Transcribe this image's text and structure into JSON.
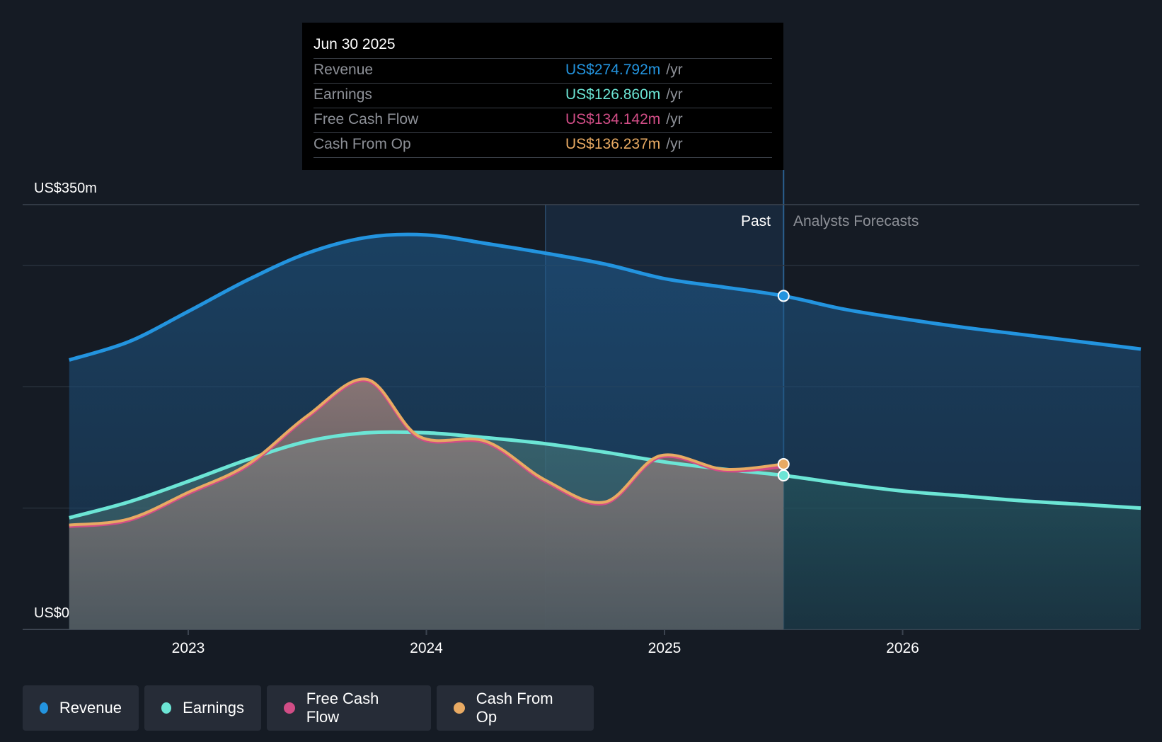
{
  "chart_data": {
    "type": "line",
    "ylim": [
      0,
      350
    ],
    "y_axis": {
      "top_label": "US$350m",
      "bottom_label": "US$0"
    },
    "x_ticks": [
      2023,
      2024,
      2025,
      2026
    ],
    "past_label": "Past",
    "forecast_label": "Analysts Forecasts",
    "colors": {
      "Revenue": "#2394df",
      "Earnings": "#6ce5d5",
      "Free Cash Flow": "#d14d86",
      "Cash From Op": "#e8aa63"
    },
    "series": [
      {
        "name": "Revenue",
        "x": [
          2022.5,
          2022.75,
          2023.0,
          2023.25,
          2023.5,
          2023.75,
          2024.0,
          2024.25,
          2024.5,
          2024.75,
          2025.0,
          2025.25,
          2025.5,
          2025.75,
          2026.0,
          2026.25,
          2026.5,
          2026.75,
          2027.0
        ],
        "values": [
          222,
          237,
          262,
          288,
          310,
          323,
          325,
          318,
          310,
          301,
          289,
          282,
          274.792,
          264,
          256,
          249,
          243,
          237,
          231
        ]
      },
      {
        "name": "Earnings",
        "x": [
          2022.5,
          2022.75,
          2023.0,
          2023.25,
          2023.5,
          2023.75,
          2024.0,
          2024.25,
          2024.5,
          2024.75,
          2025.0,
          2025.25,
          2025.5,
          2025.75,
          2026.0,
          2026.25,
          2026.5,
          2026.75,
          2027.0
        ],
        "values": [
          92,
          105,
          122,
          140,
          155,
          162,
          162,
          158,
          153,
          146,
          138,
          132,
          126.86,
          120,
          114,
          110,
          106,
          103,
          100
        ]
      },
      {
        "name": "Free Cash Flow",
        "x": [
          2022.5,
          2022.75,
          2023.0,
          2023.25,
          2023.5,
          2023.75,
          2023.97,
          2024.25,
          2024.5,
          2024.75,
          2024.98,
          2025.25,
          2025.5
        ],
        "values": [
          85,
          90,
          112,
          135,
          175,
          205,
          158,
          154,
          122,
          104,
          142,
          131,
          134.142
        ]
      },
      {
        "name": "Cash From Op",
        "x": [
          2022.5,
          2022.75,
          2023.0,
          2023.25,
          2023.5,
          2023.75,
          2023.97,
          2024.25,
          2024.5,
          2024.75,
          2024.98,
          2025.25,
          2025.5
        ],
        "values": [
          86,
          91,
          113,
          136,
          176,
          206,
          159,
          155,
          123,
          105,
          143,
          132,
          136.237
        ]
      }
    ]
  },
  "tooltip": {
    "date": "Jun 30 2025",
    "rows": [
      {
        "label": "Revenue",
        "value": "US$274.792m",
        "unit": "/yr",
        "color": "#2394df"
      },
      {
        "label": "Earnings",
        "value": "US$126.860m",
        "unit": "/yr",
        "color": "#6ce5d5"
      },
      {
        "label": "Free Cash Flow",
        "value": "US$134.142m",
        "unit": "/yr",
        "color": "#d14d86"
      },
      {
        "label": "Cash From Op",
        "value": "US$136.237m",
        "unit": "/yr",
        "color": "#e8aa63"
      }
    ]
  },
  "legend": [
    {
      "label": "Revenue",
      "color": "#2394df"
    },
    {
      "label": "Earnings",
      "color": "#6ce5d5"
    },
    {
      "label": "Free Cash Flow",
      "color": "#d14d86"
    },
    {
      "label": "Cash From Op",
      "color": "#e8aa63"
    }
  ]
}
